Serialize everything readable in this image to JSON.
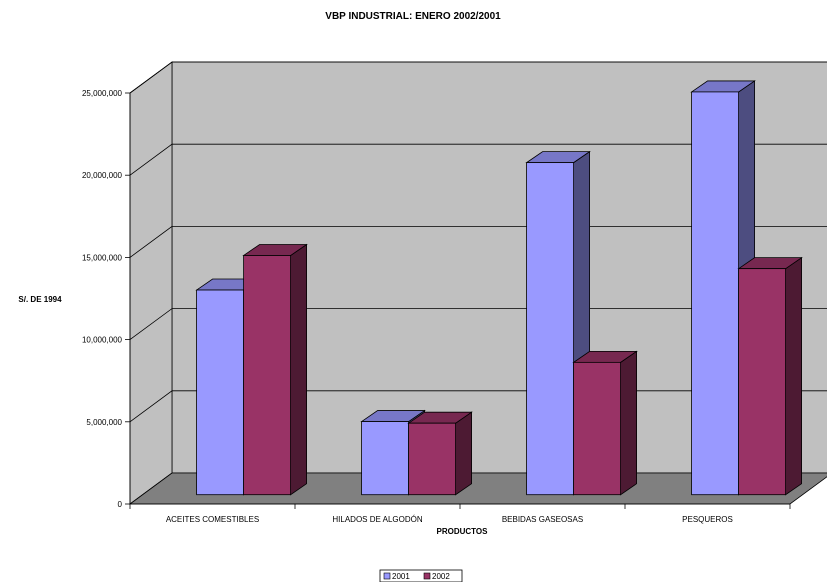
{
  "chart_data": {
    "type": "bar",
    "title": "VBP INDUSTRIAL: ENERO 2002/2001",
    "xlabel": "PRODUCTOS",
    "ylabel": "S/. DE 1994",
    "categories": [
      "ACEITES COMESTIBLES",
      "HILADOS DE ALGODÓN",
      "BEBIDAS GASEOSAS",
      "PESQUEROS"
    ],
    "series": [
      {
        "name": "2001",
        "values": [
          12450000,
          4450000,
          20200000,
          24500000
        ],
        "color": "#9999FF"
      },
      {
        "name": "2002",
        "values": [
          14550000,
          4350000,
          8050000,
          13750000
        ],
        "color": "#993366"
      }
    ],
    "ylim": [
      0,
      25000000
    ],
    "yticks": [
      0,
      5000000,
      10000000,
      15000000,
      20000000,
      25000000
    ],
    "ytick_labels": [
      "0",
      "5,000,000",
      "10,000,000",
      "15,000,000",
      "20,000,000",
      "25,000,000"
    ],
    "grid": true,
    "legend": "bottom",
    "style": "3d-clustered",
    "wall_color": "#C0C0C0",
    "floor_color": "#808080"
  }
}
